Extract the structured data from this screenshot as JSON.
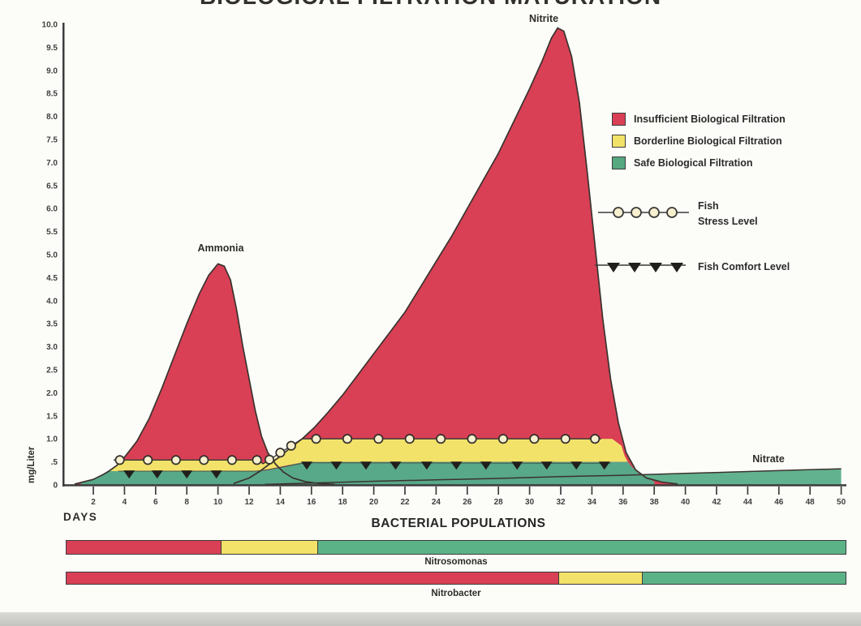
{
  "title": "BIOLOGICAL FILTRATION MATURATION",
  "colors": {
    "red": "#d94055",
    "yellow": "#f2e269",
    "band_green": "#58a88a",
    "bar_green": "#5cb287",
    "nitrate_green": "#63b28f",
    "outline": "#3a332e",
    "axis": "#3c3c3c",
    "marker_fill": "#f7f0cf",
    "marker_dark": "#211f1c",
    "zone": {
      "insufficient": "#d94055",
      "borderline": "#f2e269",
      "safe": "#5cb287"
    }
  },
  "axes": {
    "y_label": "mg/Liter",
    "x_label": "DAYS"
  },
  "legend": {
    "zones": [
      {
        "label": "Insufficient Biological Filtration",
        "color": "#d94055"
      },
      {
        "label": "Borderline Biological Filtration",
        "color": "#f2e269"
      },
      {
        "label": "Safe Biological Filtration",
        "color": "#55a87f"
      }
    ],
    "stress": {
      "line1": "Fish",
      "line2": "Stress Level"
    },
    "comfort": {
      "label": "Fish Comfort Level"
    }
  },
  "bacteria": {
    "title": "BACTERIAL POPULATIONS",
    "bars": [
      {
        "label": "Nitrosomonas",
        "segments": [
          {
            "zone": "insufficient",
            "width": 0.199
          },
          {
            "zone": "borderline",
            "width": 0.124
          },
          {
            "zone": "safe",
            "width": 0.677
          }
        ]
      },
      {
        "label": "Nitrobacter",
        "segments": [
          {
            "zone": "insufficient",
            "width": 0.632
          },
          {
            "zone": "borderline",
            "width": 0.108
          },
          {
            "zone": "safe",
            "width": 0.26
          }
        ]
      }
    ]
  },
  "chart_data": {
    "type": "area",
    "title": "BIOLOGICAL FILTRATION MATURATION",
    "xlabel": "DAYS",
    "ylabel": "mg/Liter",
    "x_axis": {
      "range": [
        0,
        50
      ],
      "ticks": [
        2,
        4,
        6,
        8,
        10,
        12,
        14,
        16,
        18,
        20,
        22,
        24,
        26,
        28,
        30,
        32,
        34,
        36,
        38,
        40,
        42,
        44,
        46,
        48,
        50
      ]
    },
    "y_axis": {
      "range": [
        0,
        10
      ],
      "tick_step": 0.5,
      "ticks": [
        {
          "v": 10.0,
          "label": "10.0"
        },
        {
          "v": 9.5,
          "label": "9.5"
        },
        {
          "v": 9.0,
          "label": "9.0"
        },
        {
          "v": 8.5,
          "label": "8.5"
        },
        {
          "v": 8.0,
          "label": "8.0"
        },
        {
          "v": 7.5,
          "label": "7.5"
        },
        {
          "v": 7.0,
          "label": "7.0"
        },
        {
          "v": 6.5,
          "label": "6.5"
        },
        {
          "v": 6.0,
          "label": "6.0"
        },
        {
          "v": 5.5,
          "label": "5.5"
        },
        {
          "v": 5.0,
          "label": "5.0"
        },
        {
          "v": 4.5,
          "label": "4.5"
        },
        {
          "v": 4.0,
          "label": "4.0"
        },
        {
          "v": 3.5,
          "label": "3.5"
        },
        {
          "v": 3.0,
          "label": "3.0"
        },
        {
          "v": 2.5,
          "label": "2.5"
        },
        {
          "v": 2.0,
          "label": "2.0"
        },
        {
          "v": 1.5,
          "label": "1.5"
        },
        {
          "v": 1.0,
          "label": "1.0"
        },
        {
          "v": 0.5,
          "label": ".5"
        },
        {
          "v": 0,
          "label": "0"
        }
      ]
    },
    "series": [
      {
        "name": "Ammonia",
        "peak_day": 10,
        "peak_value": 4.8,
        "points": [
          [
            0.8,
            0.02
          ],
          [
            2,
            0.12
          ],
          [
            2.6,
            0.22
          ],
          [
            3,
            0.3
          ],
          [
            3.5,
            0.42
          ],
          [
            4,
            0.6
          ],
          [
            4.8,
            0.95
          ],
          [
            5.6,
            1.45
          ],
          [
            6.4,
            2.1
          ],
          [
            7.2,
            2.8
          ],
          [
            8,
            3.5
          ],
          [
            8.8,
            4.15
          ],
          [
            9.4,
            4.55
          ],
          [
            10,
            4.8
          ],
          [
            10.4,
            4.75
          ],
          [
            10.8,
            4.45
          ],
          [
            11.2,
            3.8
          ],
          [
            11.6,
            3.0
          ],
          [
            12,
            2.3
          ],
          [
            12.4,
            1.6
          ],
          [
            12.8,
            1.05
          ],
          [
            13.2,
            0.7
          ],
          [
            13.7,
            0.45
          ],
          [
            14.2,
            0.28
          ],
          [
            14.8,
            0.15
          ],
          [
            15.6,
            0.07
          ],
          [
            16.5,
            0.03
          ],
          [
            17.5,
            0.01
          ]
        ]
      },
      {
        "name": "Nitrite",
        "peak_day": 32,
        "peak_value": 9.9,
        "points": [
          [
            11,
            0.03
          ],
          [
            12,
            0.15
          ],
          [
            12.7,
            0.3
          ],
          [
            13.3,
            0.45
          ],
          [
            14,
            0.62
          ],
          [
            14.7,
            0.82
          ],
          [
            15.4,
            1.0
          ],
          [
            16.2,
            1.25
          ],
          [
            17,
            1.55
          ],
          [
            18,
            1.95
          ],
          [
            19,
            2.4
          ],
          [
            20,
            2.85
          ],
          [
            21,
            3.3
          ],
          [
            22,
            3.75
          ],
          [
            23,
            4.3
          ],
          [
            24,
            4.85
          ],
          [
            25,
            5.4
          ],
          [
            26,
            6.0
          ],
          [
            27,
            6.6
          ],
          [
            28,
            7.2
          ],
          [
            29,
            7.9
          ],
          [
            30,
            8.6
          ],
          [
            30.8,
            9.2
          ],
          [
            31.4,
            9.7
          ],
          [
            31.8,
            9.92
          ],
          [
            32.2,
            9.85
          ],
          [
            32.7,
            9.3
          ],
          [
            33.2,
            8.3
          ],
          [
            33.7,
            6.8
          ],
          [
            34.2,
            5.2
          ],
          [
            34.7,
            3.6
          ],
          [
            35.2,
            2.3
          ],
          [
            35.7,
            1.35
          ],
          [
            36.2,
            0.7
          ],
          [
            36.8,
            0.33
          ],
          [
            37.5,
            0.15
          ],
          [
            38.5,
            0.06
          ],
          [
            39.5,
            0.02
          ]
        ]
      },
      {
        "name": "Nitrate",
        "end_value": 0.35,
        "points": [
          [
            13,
            0.01
          ],
          [
            16,
            0.04
          ],
          [
            20,
            0.08
          ],
          [
            24,
            0.11
          ],
          [
            28,
            0.14
          ],
          [
            32,
            0.18
          ],
          [
            36,
            0.21
          ],
          [
            40,
            0.25
          ],
          [
            44,
            0.29
          ],
          [
            47,
            0.32
          ],
          [
            50,
            0.35
          ]
        ]
      }
    ],
    "zones": [
      {
        "name": "Insufficient Biological Filtration",
        "color": "#d94055"
      },
      {
        "name": "Borderline Biological Filtration",
        "color": "#f2e269"
      },
      {
        "name": "Safe Biological Filtration",
        "color": "#58a88a"
      }
    ],
    "bands": {
      "yellow_polygon": [
        [
          3.0,
          0.3
        ],
        [
          3.5,
          0.42
        ],
        [
          3.9,
          0.55
        ],
        [
          12.3,
          0.55
        ],
        [
          12.9,
          0.46
        ],
        [
          13.6,
          0.56
        ],
        [
          14.2,
          0.7
        ],
        [
          14.8,
          0.85
        ],
        [
          15.4,
          1.0
        ],
        [
          35.3,
          1.0
        ],
        [
          35.9,
          0.85
        ],
        [
          36.1,
          0.63
        ],
        [
          36.3,
          0.5
        ],
        [
          16.0,
          0.5
        ],
        [
          15.4,
          0.49
        ],
        [
          14.5,
          0.43
        ],
        [
          13.5,
          0.36
        ],
        [
          12.8,
          0.31
        ],
        [
          12.3,
          0.3
        ],
        [
          3.6,
          0.3
        ]
      ],
      "green_polygon": [
        [
          1.2,
          0.04
        ],
        [
          2.0,
          0.12
        ],
        [
          2.6,
          0.22
        ],
        [
          3.0,
          0.3
        ],
        [
          12.3,
          0.3
        ],
        [
          13.0,
          0.31
        ],
        [
          14.0,
          0.38
        ],
        [
          15.0,
          0.46
        ],
        [
          15.6,
          0.5
        ],
        [
          36.3,
          0.5
        ],
        [
          36.6,
          0.38
        ],
        [
          37.0,
          0.25
        ],
        [
          37.5,
          0.14
        ],
        [
          38.0,
          0.08
        ],
        [
          38.0,
          0.0
        ],
        [
          1.2,
          0.0
        ]
      ]
    },
    "stress_line": {
      "label": "Fish Stress Level",
      "line_points": [
        [
          3.3,
          0.54
        ],
        [
          12.5,
          0.54
        ],
        [
          12.9,
          0.46
        ],
        [
          15.4,
          1.0
        ],
        [
          34.6,
          1.0
        ]
      ],
      "markers": [
        [
          3.7,
          0.54
        ],
        [
          5.5,
          0.54
        ],
        [
          7.3,
          0.54
        ],
        [
          9.1,
          0.54
        ],
        [
          10.9,
          0.54
        ],
        [
          12.5,
          0.54
        ],
        [
          13.3,
          0.55
        ],
        [
          14.0,
          0.7
        ],
        [
          14.7,
          0.85
        ],
        [
          16.3,
          1.0
        ],
        [
          18.3,
          1.0
        ],
        [
          20.3,
          1.0
        ],
        [
          22.3,
          1.0
        ],
        [
          24.3,
          1.0
        ],
        [
          26.3,
          1.0
        ],
        [
          28.3,
          1.0
        ],
        [
          30.3,
          1.0
        ],
        [
          32.3,
          1.0
        ],
        [
          34.2,
          1.0
        ]
      ]
    },
    "comfort_line": {
      "label": "Fish Comfort Level",
      "line_points": [
        [
          3.6,
          0.3
        ],
        [
          12.4,
          0.3
        ],
        [
          13.2,
          0.33
        ],
        [
          15.6,
          0.48
        ],
        [
          35.2,
          0.47
        ]
      ],
      "markers": [
        [
          4.3,
          0.28
        ],
        [
          6.1,
          0.28
        ],
        [
          8.0,
          0.28
        ],
        [
          9.9,
          0.28
        ],
        [
          15.7,
          0.47
        ],
        [
          17.6,
          0.47
        ],
        [
          19.5,
          0.47
        ],
        [
          21.4,
          0.47
        ],
        [
          23.4,
          0.47
        ],
        [
          25.3,
          0.47
        ],
        [
          27.2,
          0.47
        ],
        [
          29.2,
          0.47
        ],
        [
          31.1,
          0.47
        ],
        [
          33.0,
          0.47
        ],
        [
          34.8,
          0.47
        ]
      ]
    },
    "bacterial_populations": {
      "title": "BACTERIAL POPULATIONS",
      "bars": [
        {
          "name": "Nitrosomonas",
          "insufficient_until_day": 10.2,
          "borderline_until_day": 16.4,
          "safe_until_day": 50
        },
        {
          "name": "Nitrobacter",
          "insufficient_until_day": 31.9,
          "borderline_until_day": 37.3,
          "safe_until_day": 50
        }
      ]
    }
  }
}
